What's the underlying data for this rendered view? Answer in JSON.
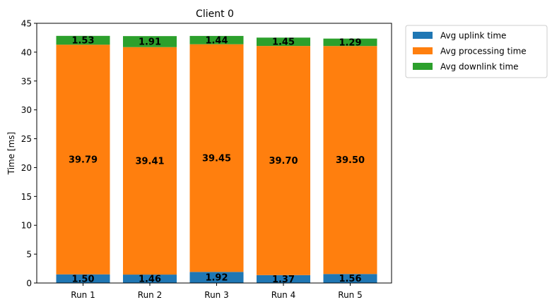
{
  "chart_data": {
    "type": "bar",
    "stacked": true,
    "title": "Client 0",
    "xlabel": "",
    "ylabel": "Time [ms]",
    "ylim": [
      0,
      45
    ],
    "yticks": [
      0,
      5,
      10,
      15,
      20,
      25,
      30,
      35,
      40,
      45
    ],
    "categories": [
      "Run 1",
      "Run 2",
      "Run 3",
      "Run 4",
      "Run 5"
    ],
    "series": [
      {
        "name": "Avg uplink time",
        "color": "#1f77b4",
        "values": [
          1.5,
          1.46,
          1.92,
          1.37,
          1.56
        ],
        "labels": [
          "1.50",
          "1.46",
          "1.92",
          "1.37",
          "1.56"
        ]
      },
      {
        "name": "Avg processing time",
        "color": "#ff7f0e",
        "values": [
          39.79,
          39.41,
          39.45,
          39.7,
          39.5
        ],
        "labels": [
          "39.79",
          "39.41",
          "39.45",
          "39.70",
          "39.50"
        ]
      },
      {
        "name": "Avg downlink time",
        "color": "#2ca02c",
        "values": [
          1.53,
          1.91,
          1.44,
          1.45,
          1.29
        ],
        "labels": [
          "1.53",
          "1.91",
          "1.44",
          "1.45",
          "1.29"
        ]
      }
    ],
    "grid": false,
    "legend": "outside-upper-right"
  }
}
